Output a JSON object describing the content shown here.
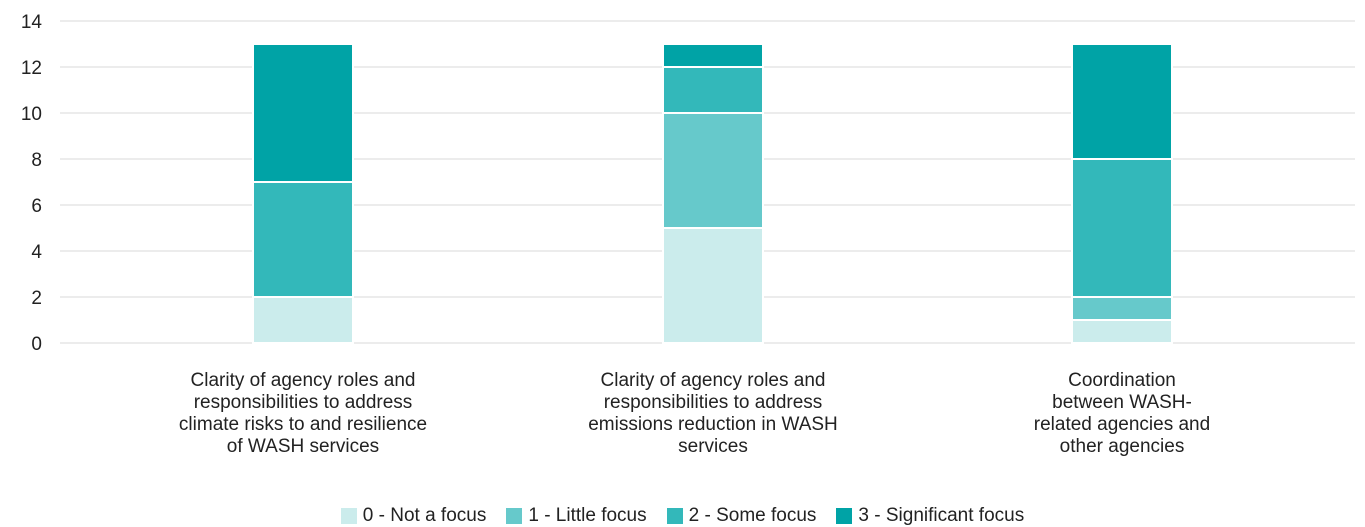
{
  "chart_data": {
    "type": "bar",
    "stacked": true,
    "categories": [
      "Clarity of agency roles and responsibilities to address climate risks to and resilience of WASH services",
      "Clarity of agency roles and responsibilities to address emissions reduction in WASH services",
      "Coordination between WASH-related agencies and other agencies"
    ],
    "category_lines": [
      [
        "Clarity of agency roles and",
        "responsibilities to address",
        "climate risks to and resilience",
        "of WASH services"
      ],
      [
        "Clarity of agency roles and",
        "responsibilities to address",
        "emissions reduction in WASH",
        "services"
      ],
      [
        "Coordination",
        "between WASH-",
        "related agencies and",
        "other agencies"
      ]
    ],
    "series": [
      {
        "name": "0 - Not a focus",
        "color": "#cbecec",
        "values": [
          2,
          5,
          1
        ]
      },
      {
        "name": "1 - Little focus",
        "color": "#66c9cb",
        "values": [
          0,
          5,
          1
        ]
      },
      {
        "name": "2 - Some focus",
        "color": "#33b8ba",
        "values": [
          5,
          2,
          6
        ]
      },
      {
        "name": "3 - Significant focus",
        "color": "#00a3a6",
        "values": [
          6,
          1,
          5
        ]
      }
    ],
    "ylim": [
      0,
      14
    ],
    "yticks": [
      0,
      2,
      4,
      6,
      8,
      10,
      12,
      14
    ],
    "grid": true,
    "legend_position": "bottom"
  }
}
